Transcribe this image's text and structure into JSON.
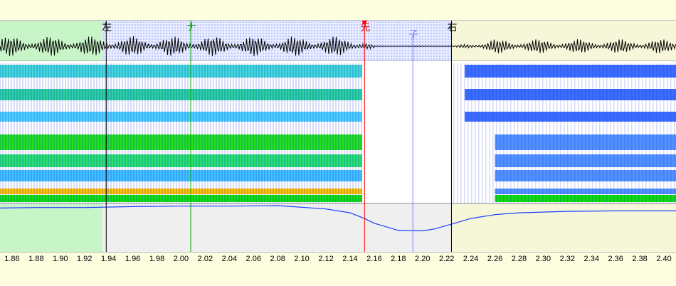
{
  "markers": [
    {
      "id": "left",
      "label": "左",
      "time": 1.938,
      "color": "#000000"
    },
    {
      "id": "cursor",
      "label": "ナ",
      "time": 2.008,
      "color": "#00a000"
    },
    {
      "id": "onset",
      "label": "先",
      "time": 2.152,
      "color": "#ff0000"
    },
    {
      "id": "end",
      "label": "子",
      "time": 2.192,
      "color": "#8080ff"
    },
    {
      "id": "right",
      "label": "右",
      "time": 2.224,
      "color": "#000000"
    }
  ],
  "time_axis": {
    "start": 1.85,
    "end": 2.41,
    "ticks": [
      "1.86",
      "1.88",
      "1.90",
      "1.92",
      "1.94",
      "1.96",
      "1.98",
      "2.00",
      "2.02",
      "2.04",
      "2.06",
      "2.08",
      "2.10",
      "2.12",
      "2.14",
      "2.16",
      "2.18",
      "2.20",
      "2.22",
      "2.24",
      "2.26",
      "2.28",
      "2.30",
      "2.32",
      "2.34",
      "2.36",
      "2.38",
      "2.40"
    ]
  },
  "pitch_curve": [
    [
      1.85,
      0.92
    ],
    [
      1.88,
      0.93
    ],
    [
      1.92,
      0.93
    ],
    [
      1.96,
      0.95
    ],
    [
      2.0,
      0.96
    ],
    [
      2.04,
      0.96
    ],
    [
      2.08,
      0.97
    ],
    [
      2.12,
      0.9
    ],
    [
      2.14,
      0.82
    ],
    [
      2.152,
      0.7
    ],
    [
      2.16,
      0.6
    ],
    [
      2.18,
      0.45
    ],
    [
      2.2,
      0.44
    ],
    [
      2.21,
      0.48
    ],
    [
      2.224,
      0.58
    ],
    [
      2.24,
      0.7
    ],
    [
      2.26,
      0.78
    ],
    [
      2.28,
      0.82
    ],
    [
      2.32,
      0.85
    ],
    [
      2.36,
      0.86
    ],
    [
      2.41,
      0.86
    ]
  ],
  "colors": {
    "left_region": "#c8f5c8",
    "right_region": "#f6f6d8",
    "selection": "#d0d8ff",
    "pitch_line": "#1e3cff"
  }
}
